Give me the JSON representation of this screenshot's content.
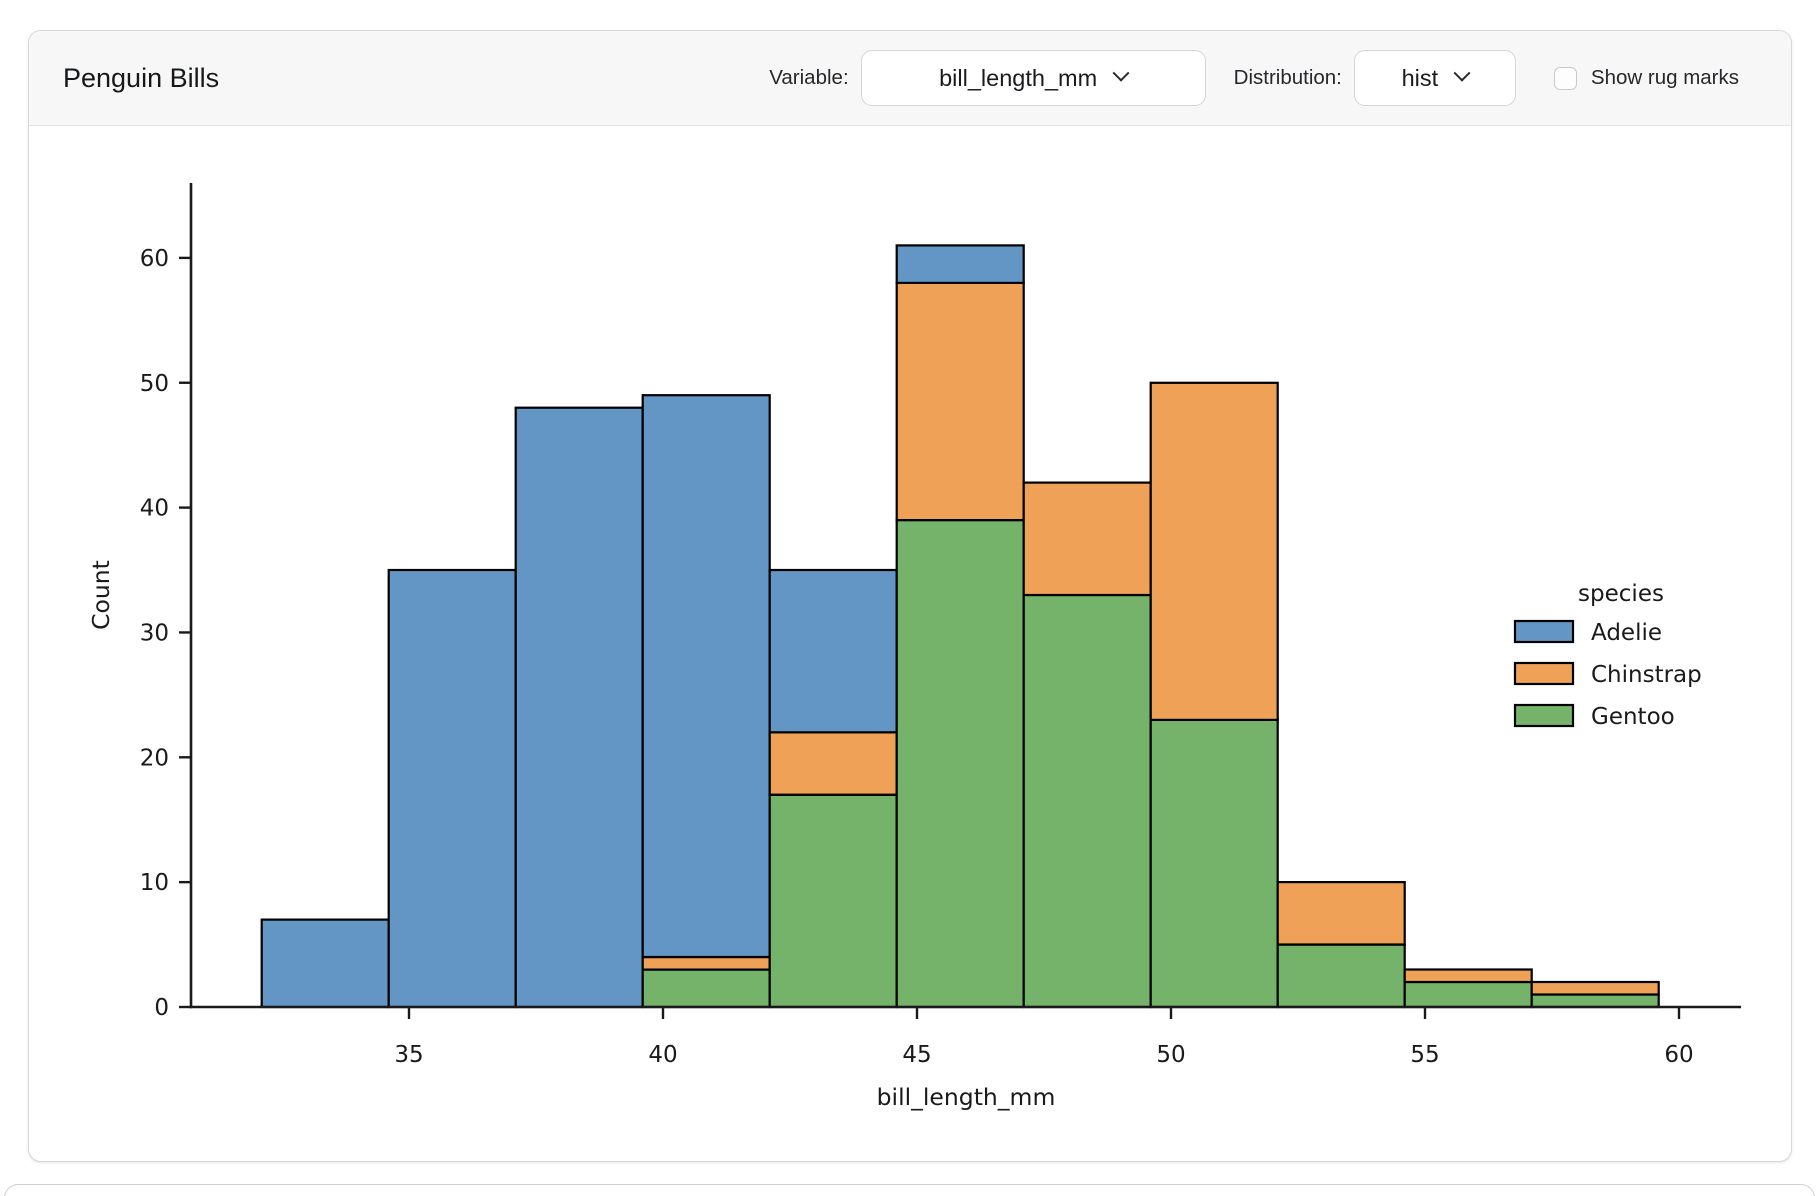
{
  "card": {
    "title": "Penguin Bills",
    "controls": {
      "variable_label": "Variable:",
      "variable_value": "bill_length_mm",
      "distribution_label": "Distribution:",
      "distribution_value": "hist",
      "rug_label": "Show rug marks",
      "rug_checked": false
    }
  },
  "chart_data": {
    "type": "bar",
    "subtype": "stacked-histogram",
    "title": "",
    "xlabel": "bill_length_mm",
    "ylabel": "Count",
    "bin_edges": [
      32.1,
      34.6,
      37.1,
      39.6,
      42.1,
      44.6,
      47.1,
      49.6,
      52.1,
      54.6,
      57.1,
      59.6
    ],
    "stack_order_bottom_to_top": [
      "Gentoo",
      "Chinstrap",
      "Adelie"
    ],
    "series": [
      {
        "name": "Adelie",
        "color": "#6396c4",
        "values": [
          7,
          35,
          48,
          45,
          13,
          3,
          0,
          0,
          0,
          0,
          0
        ]
      },
      {
        "name": "Chinstrap",
        "color": "#efa257",
        "values": [
          0,
          0,
          0,
          1,
          5,
          19,
          9,
          27,
          5,
          1,
          1
        ]
      },
      {
        "name": "Gentoo",
        "color": "#76b36a",
        "values": [
          0,
          0,
          0,
          3,
          17,
          39,
          33,
          23,
          5,
          2,
          1
        ]
      }
    ],
    "bar_totals": [
      7,
      35,
      48,
      49,
      35,
      61,
      42,
      50,
      10,
      3,
      2
    ],
    "edge_color": "#000000",
    "x_ticks": [
      35,
      40,
      45,
      50,
      55,
      60
    ],
    "y_ticks": [
      0,
      10,
      20,
      30,
      40,
      50,
      60
    ],
    "xlim": [
      30.7,
      61.1
    ],
    "ylim": [
      0,
      66
    ],
    "grid": false,
    "legend": {
      "title": "species",
      "position": "center-right",
      "entries": [
        {
          "label": "Adelie",
          "color": "#6396c4"
        },
        {
          "label": "Chinstrap",
          "color": "#efa257"
        },
        {
          "label": "Gentoo",
          "color": "#76b36a"
        }
      ]
    }
  }
}
